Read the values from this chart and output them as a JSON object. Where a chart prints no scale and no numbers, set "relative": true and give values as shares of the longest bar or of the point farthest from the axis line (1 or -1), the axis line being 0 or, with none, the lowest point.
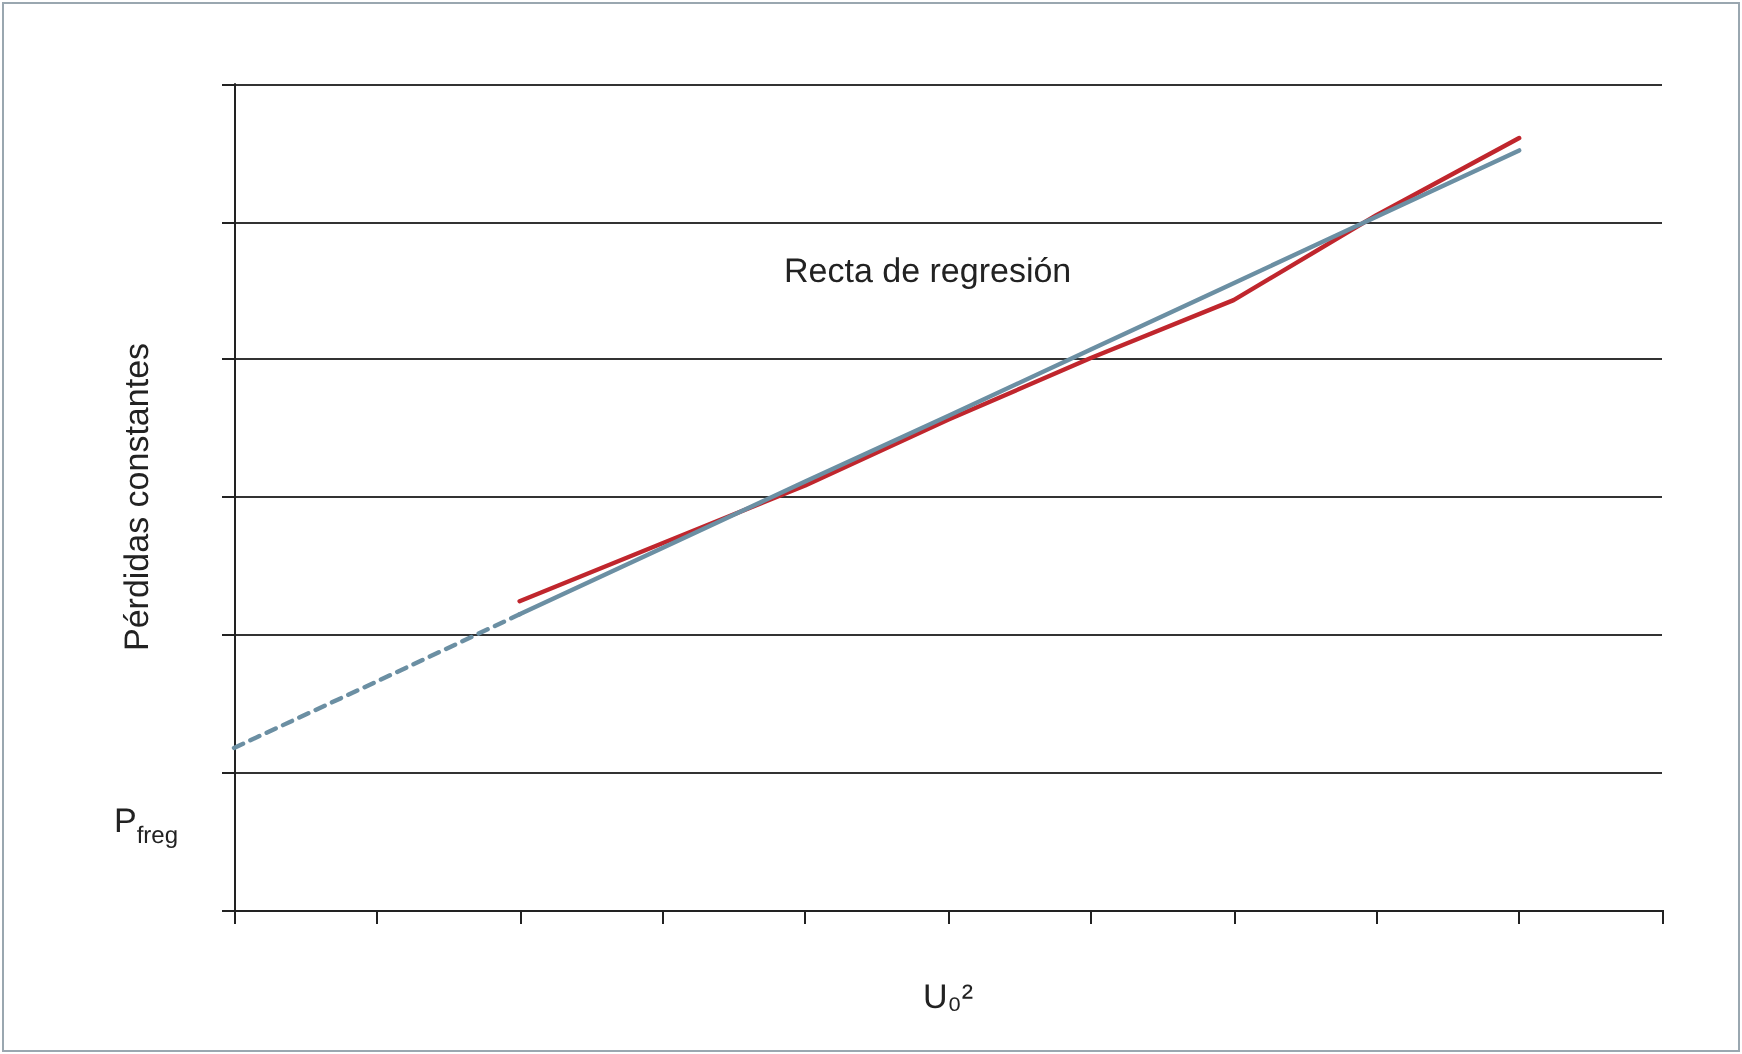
{
  "chart_data": {
    "type": "line",
    "relative": true,
    "xlabel": "U₀²",
    "ylabel": "Pérdidas constantes",
    "annotations": [
      "Recta de regresión",
      "P$_{freg}$"
    ],
    "categories": [
      null,
      null,
      null,
      null,
      null,
      null,
      null,
      null,
      null,
      null,
      null
    ],
    "grid": "y",
    "marker": "none",
    "series": [
      {
        "color": "#c0262d",
        "values": [
          null,
          null,
          0.4,
          0.475,
          0.55,
          0.635,
          0.715,
          0.79,
          0.9,
          1,
          null
        ]
      },
      {
        "color": "#6b8fa3",
        "values": [
          null,
          null,
          0.383,
          0.469,
          0.555,
          0.64,
          0.726,
          0.812,
          0.898,
          0.984,
          null
        ]
      },
      {
        "color": "#6b8fa3",
        "values": [
          0.21,
          0.296,
          0.383,
          null,
          null,
          null,
          null,
          null,
          null,
          null,
          null
        ],
        "line_style": "dashed"
      }
    ]
  }
}
